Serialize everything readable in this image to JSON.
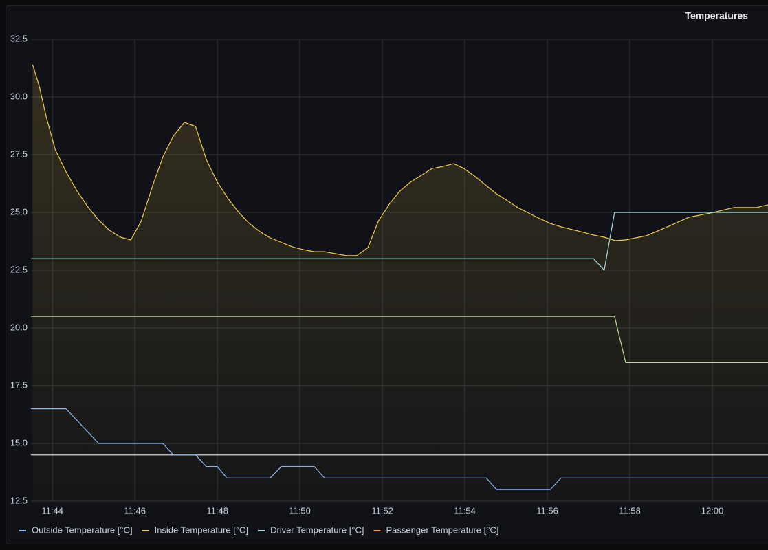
{
  "chart_data": {
    "type": "line",
    "title": "Temperatures",
    "xlim": [
      703.48,
      721.35
    ],
    "xticks": [
      {
        "value": 704,
        "label": "11:44"
      },
      {
        "value": 706,
        "label": "11:46"
      },
      {
        "value": 708,
        "label": "11:48"
      },
      {
        "value": 710,
        "label": "11:50"
      },
      {
        "value": 712,
        "label": "11:52"
      },
      {
        "value": 714,
        "label": "11:54"
      },
      {
        "value": 716,
        "label": "11:56"
      },
      {
        "value": 718,
        "label": "11:58"
      },
      {
        "value": 720,
        "label": "12:00"
      }
    ],
    "ylim": [
      12.5,
      32.5
    ],
    "yticks": [
      12.5,
      {
        "value": 15,
        "label": "15.0"
      },
      17.5,
      {
        "value": 20,
        "label": "20.0"
      },
      22.5,
      {
        "value": 25,
        "label": "25.0"
      },
      27.5,
      {
        "value": 30,
        "label": "30.0"
      },
      32.5
    ],
    "grid": true,
    "legend": "bottom",
    "series": [
      {
        "name": "Outside Temperature [°C]",
        "color": "#8ab8ff",
        "x": [
          703.48,
          704.33,
          705.12,
          706.68,
          706.93,
          707.47,
          707.73,
          708.0,
          708.23,
          709.28,
          709.55,
          710.35,
          710.6,
          714.52,
          714.77,
          716.07,
          716.33,
          721.35
        ],
        "values": [
          16.5,
          16.5,
          15,
          15,
          14.5,
          14.5,
          14,
          14,
          13.5,
          13.5,
          14,
          14,
          13.5,
          13.5,
          13,
          13,
          13.5,
          13.5
        ]
      },
      {
        "name": "Inside Temperature [°C]",
        "color": "#f2cc4c",
        "fill": true,
        "x": [
          703.52,
          703.68,
          703.85,
          704.07,
          704.33,
          704.6,
          704.87,
          705.12,
          705.38,
          705.65,
          705.9,
          706.15,
          706.43,
          706.68,
          706.93,
          707.2,
          707.47,
          707.73,
          708.0,
          708.27,
          708.52,
          708.77,
          709.03,
          709.28,
          709.57,
          709.82,
          710.08,
          710.35,
          710.6,
          710.87,
          711.13,
          711.38,
          711.65,
          711.9,
          712.17,
          712.42,
          712.68,
          712.95,
          713.2,
          713.47,
          713.73,
          713.98,
          714.23,
          714.5,
          714.77,
          715.03,
          715.28,
          715.55,
          715.82,
          716.07,
          716.33,
          716.6,
          716.87,
          717.12,
          717.38,
          717.65,
          717.9,
          718.4,
          718.92,
          719.43,
          720.03,
          720.52,
          721.07,
          721.35
        ],
        "values": [
          31.4,
          30.48,
          29.14,
          27.71,
          26.76,
          25.92,
          25.21,
          24.67,
          24.23,
          23.93,
          23.81,
          24.61,
          26.16,
          27.41,
          28.3,
          28.9,
          28.72,
          27.29,
          26.31,
          25.57,
          25.0,
          24.53,
          24.17,
          23.9,
          23.69,
          23.51,
          23.39,
          23.3,
          23.3,
          23.21,
          23.13,
          23.13,
          23.48,
          24.61,
          25.36,
          25.92,
          26.31,
          26.61,
          26.9,
          26.99,
          27.11,
          26.9,
          26.58,
          26.19,
          25.8,
          25.51,
          25.21,
          24.97,
          24.73,
          24.52,
          24.38,
          24.26,
          24.14,
          24.02,
          23.93,
          23.78,
          23.81,
          23.99,
          24.38,
          24.79,
          25.0,
          25.21,
          25.21,
          25.33
        ]
      },
      {
        "name": "Driver Temperature [°C]",
        "color": "#a8dde0",
        "x": [
          703.48,
          717.12,
          717.38,
          717.63,
          721.35
        ],
        "values": [
          23,
          23,
          22.5,
          25,
          25
        ]
      },
      {
        "name": "Passenger Temperature [°C]",
        "color": "#ff9830",
        "x": [],
        "values": []
      }
    ],
    "unlabeled_series": [
      {
        "color": "#b5dca0",
        "x": [
          703.48,
          717.63,
          717.9,
          721.35
        ],
        "values": [
          20.5,
          20.5,
          18.5,
          18.5
        ]
      },
      {
        "color": "#e6e8ec",
        "x": [
          703.48,
          721.35
        ],
        "values": [
          14.5,
          14.5
        ]
      }
    ]
  }
}
